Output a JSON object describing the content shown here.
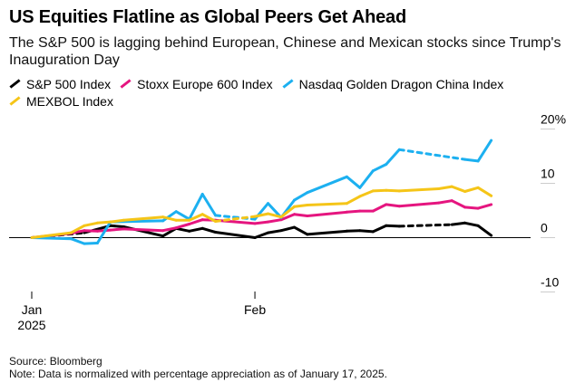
{
  "header": {
    "title": "US Equities Flatline as Global Peers Get Ahead",
    "subtitle": "The S&P 500 is lagging behind European, Chinese and Mexican stocks since Trump's Inauguration Day"
  },
  "footer": {
    "source": "Source: Bloomberg",
    "note": "Note: Data is normalized with percentage appreciation as of January 17, 2025."
  },
  "chart_data": {
    "type": "line",
    "title": "US Equities Flatline as Global Peers Get Ahead",
    "subtitle": "The S&P 500 is lagging behind European, Chinese and Mexican stocks since Trump's Inauguration Day",
    "xlabel": "",
    "ylabel": "",
    "ylim": [
      -10,
      20
    ],
    "xlim": [
      "2025-01-17",
      "2025-02-24"
    ],
    "x_ticks": [
      {
        "date": "2025-01-17",
        "label": "Jan",
        "sublabel": "2025"
      },
      {
        "date": "2025-02-03",
        "label": "Feb",
        "sublabel": ""
      }
    ],
    "y_ticks": [
      {
        "value": 20,
        "label": "20%"
      },
      {
        "value": 10,
        "label": "10"
      },
      {
        "value": 0,
        "label": "0"
      },
      {
        "value": -10,
        "label": "-10"
      }
    ],
    "grid": false,
    "legend_position": "top-left",
    "series": [
      {
        "name": "S&P 500 Index",
        "color": "#000000",
        "points": [
          {
            "x": "2025-01-17",
            "y": 0.0,
            "dashed": true
          },
          {
            "x": "2025-01-21",
            "y": 0.9
          },
          {
            "x": "2025-01-23",
            "y": 2.2
          },
          {
            "x": "2025-01-24",
            "y": 2.0
          },
          {
            "x": "2025-01-27",
            "y": 0.3
          },
          {
            "x": "2025-01-28",
            "y": 1.7
          },
          {
            "x": "2025-01-29",
            "y": 1.2
          },
          {
            "x": "2025-01-30",
            "y": 1.7
          },
          {
            "x": "2025-01-31",
            "y": 1.0
          },
          {
            "x": "2025-02-03",
            "y": 0.0
          },
          {
            "x": "2025-02-04",
            "y": 0.9
          },
          {
            "x": "2025-02-05",
            "y": 1.3
          },
          {
            "x": "2025-02-06",
            "y": 1.9
          },
          {
            "x": "2025-02-07",
            "y": 0.6
          },
          {
            "x": "2025-02-10",
            "y": 1.2
          },
          {
            "x": "2025-02-11",
            "y": 1.3
          },
          {
            "x": "2025-02-12",
            "y": 1.1
          },
          {
            "x": "2025-02-13",
            "y": 2.2
          },
          {
            "x": "2025-02-14",
            "y": 2.1,
            "dashed": true
          },
          {
            "x": "2025-02-18",
            "y": 2.4
          },
          {
            "x": "2025-02-19",
            "y": 2.7
          },
          {
            "x": "2025-02-20",
            "y": 2.2
          },
          {
            "x": "2025-02-21",
            "y": 0.4
          }
        ]
      },
      {
        "name": "Stoxx Europe 600 Index",
        "color": "#e5157f",
        "points": [
          {
            "x": "2025-01-17",
            "y": 0.0
          },
          {
            "x": "2025-01-20",
            "y": 0.8
          },
          {
            "x": "2025-01-21",
            "y": 1.3
          },
          {
            "x": "2025-01-22",
            "y": 1.2
          },
          {
            "x": "2025-01-23",
            "y": 1.4
          },
          {
            "x": "2025-01-24",
            "y": 1.6
          },
          {
            "x": "2025-01-27",
            "y": 1.3
          },
          {
            "x": "2025-01-28",
            "y": 1.8
          },
          {
            "x": "2025-01-29",
            "y": 2.5
          },
          {
            "x": "2025-01-30",
            "y": 3.3
          },
          {
            "x": "2025-01-31",
            "y": 3.2
          },
          {
            "x": "2025-02-03",
            "y": 2.6
          },
          {
            "x": "2025-02-04",
            "y": 2.9
          },
          {
            "x": "2025-02-05",
            "y": 3.3
          },
          {
            "x": "2025-02-06",
            "y": 4.3
          },
          {
            "x": "2025-02-07",
            "y": 4.0
          },
          {
            "x": "2025-02-10",
            "y": 4.7
          },
          {
            "x": "2025-02-11",
            "y": 4.9
          },
          {
            "x": "2025-02-12",
            "y": 4.9
          },
          {
            "x": "2025-02-13",
            "y": 6.1
          },
          {
            "x": "2025-02-14",
            "y": 5.8
          },
          {
            "x": "2025-02-17",
            "y": 6.4
          },
          {
            "x": "2025-02-18",
            "y": 6.8
          },
          {
            "x": "2025-02-19",
            "y": 5.6
          },
          {
            "x": "2025-02-20",
            "y": 5.4
          },
          {
            "x": "2025-02-21",
            "y": 6.1
          }
        ]
      },
      {
        "name": "Nasdaq Golden Dragon China Index",
        "color": "#1cb0f0",
        "points": [
          {
            "x": "2025-01-17",
            "y": 0.0
          },
          {
            "x": "2025-01-20",
            "y": -0.2
          },
          {
            "x": "2025-01-21",
            "y": -1.1
          },
          {
            "x": "2025-01-22",
            "y": -1.0
          },
          {
            "x": "2025-01-23",
            "y": 2.9
          },
          {
            "x": "2025-01-27",
            "y": 3.1
          },
          {
            "x": "2025-01-28",
            "y": 4.8
          },
          {
            "x": "2025-01-29",
            "y": 3.4
          },
          {
            "x": "2025-01-30",
            "y": 8.0
          },
          {
            "x": "2025-01-31",
            "y": 4.1,
            "dashed": true
          },
          {
            "x": "2025-02-03",
            "y": 3.4
          },
          {
            "x": "2025-02-04",
            "y": 6.3
          },
          {
            "x": "2025-02-05",
            "y": 3.7
          },
          {
            "x": "2025-02-06",
            "y": 6.9
          },
          {
            "x": "2025-02-07",
            "y": 8.3
          },
          {
            "x": "2025-02-10",
            "y": 11.2
          },
          {
            "x": "2025-02-11",
            "y": 9.2
          },
          {
            "x": "2025-02-12",
            "y": 12.3
          },
          {
            "x": "2025-02-13",
            "y": 13.5
          },
          {
            "x": "2025-02-14",
            "y": 16.2,
            "dashed": true
          },
          {
            "x": "2025-02-19",
            "y": 14.4
          },
          {
            "x": "2025-02-20",
            "y": 14.1
          },
          {
            "x": "2025-02-21",
            "y": 17.9
          }
        ]
      },
      {
        "name": "MEXBOL Index",
        "color": "#f5c518",
        "points": [
          {
            "x": "2025-01-17",
            "y": 0.0
          },
          {
            "x": "2025-01-20",
            "y": 0.9
          },
          {
            "x": "2025-01-21",
            "y": 2.2
          },
          {
            "x": "2025-01-22",
            "y": 2.7
          },
          {
            "x": "2025-01-23",
            "y": 2.9
          },
          {
            "x": "2025-01-24",
            "y": 3.2
          },
          {
            "x": "2025-01-27",
            "y": 3.8
          },
          {
            "x": "2025-01-28",
            "y": 3.2
          },
          {
            "x": "2025-01-29",
            "y": 3.2
          },
          {
            "x": "2025-01-30",
            "y": 4.3
          },
          {
            "x": "2025-01-31",
            "y": 3.0,
            "dashed": true
          },
          {
            "x": "2025-02-03",
            "y": 3.9
          },
          {
            "x": "2025-02-04",
            "y": 4.4
          },
          {
            "x": "2025-02-05",
            "y": 3.8
          },
          {
            "x": "2025-02-06",
            "y": 5.7
          },
          {
            "x": "2025-02-07",
            "y": 6.0
          },
          {
            "x": "2025-02-10",
            "y": 6.3
          },
          {
            "x": "2025-02-11",
            "y": 7.6
          },
          {
            "x": "2025-02-12",
            "y": 8.6
          },
          {
            "x": "2025-02-13",
            "y": 8.7
          },
          {
            "x": "2025-02-14",
            "y": 8.6
          },
          {
            "x": "2025-02-17",
            "y": 9.0
          },
          {
            "x": "2025-02-18",
            "y": 9.4
          },
          {
            "x": "2025-02-19",
            "y": 8.5
          },
          {
            "x": "2025-02-20",
            "y": 9.2
          },
          {
            "x": "2025-02-21",
            "y": 7.7
          }
        ]
      }
    ]
  }
}
